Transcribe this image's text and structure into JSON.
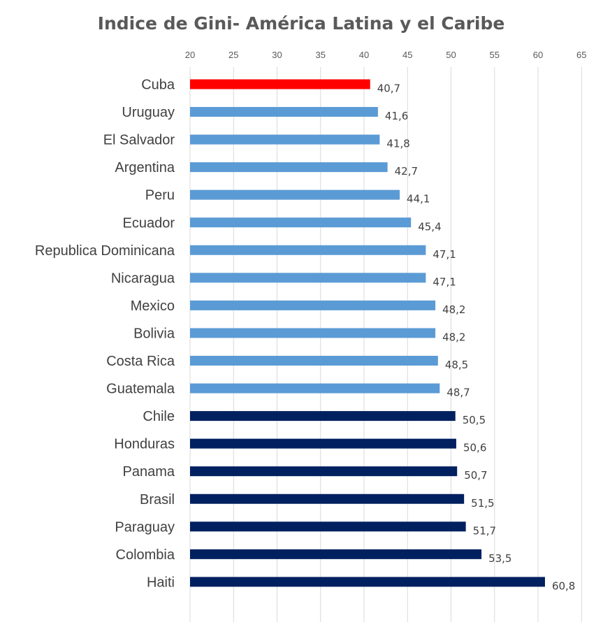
{
  "chart_data": {
    "type": "bar",
    "orientation": "horizontal",
    "title": "Indice de Gini- América Latina y el Caribe",
    "xlabel": "",
    "ylabel": "",
    "xlim": [
      20,
      65
    ],
    "ticks": [
      20,
      25,
      30,
      35,
      40,
      45,
      50,
      55,
      60,
      65
    ],
    "tick_labels": [
      "20",
      "25",
      "30",
      "35",
      "40",
      "45",
      "50",
      "55",
      "60",
      "65"
    ],
    "axis_position": "top",
    "grid": true,
    "categories": [
      "Cuba",
      "Uruguay",
      "El Salvador",
      "Argentina",
      "Peru",
      "Ecuador",
      "Republica Dominicana",
      "Nicaragua",
      "Mexico",
      "Bolivia",
      "Costa Rica",
      "Guatemala",
      "Chile",
      "Honduras",
      "Panama",
      "Brasil",
      "Paraguay",
      "Colombia",
      "Haiti"
    ],
    "values": [
      40.7,
      41.6,
      41.8,
      42.7,
      44.1,
      45.4,
      47.1,
      47.1,
      48.2,
      48.2,
      48.5,
      48.7,
      50.5,
      50.6,
      50.7,
      51.5,
      51.7,
      53.5,
      60.8
    ],
    "value_labels": [
      "40,7",
      "41,6",
      "41,8",
      "42,7",
      "44,1",
      "45,4",
      "47,1",
      "47,1",
      "48,2",
      "48,2",
      "48,5",
      "48,7",
      "50,5",
      "50,6",
      "50,7",
      "51,5",
      "51,7",
      "53,5",
      "60,8"
    ],
    "bar_colors": [
      "#ff0000",
      "#5b9bd5",
      "#5b9bd5",
      "#5b9bd5",
      "#5b9bd5",
      "#5b9bd5",
      "#5b9bd5",
      "#5b9bd5",
      "#5b9bd5",
      "#5b9bd5",
      "#5b9bd5",
      "#5b9bd5",
      "#002060",
      "#002060",
      "#002060",
      "#002060",
      "#002060",
      "#002060",
      "#002060"
    ]
  }
}
